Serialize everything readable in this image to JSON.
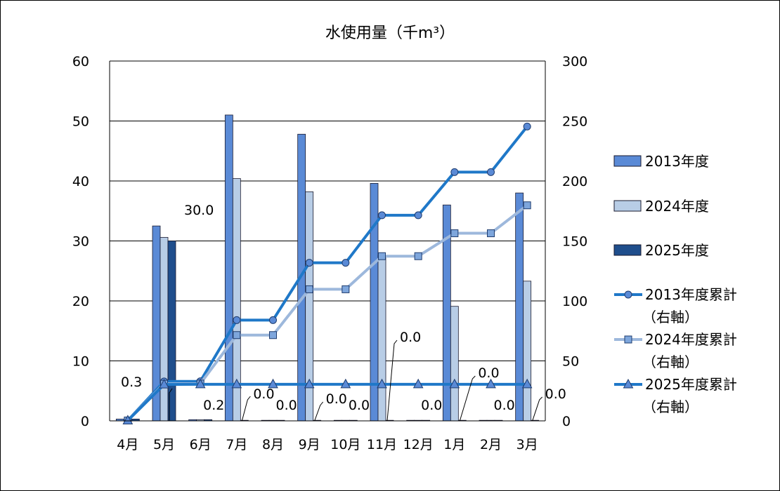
{
  "chart_data": {
    "type": "bar",
    "title": "水使用量（千m³）",
    "categories": [
      "4月",
      "5月",
      "6月",
      "7月",
      "8月",
      "9月",
      "10月",
      "11月",
      "12月",
      "1月",
      "2月",
      "3月"
    ],
    "y_left": {
      "min": 0,
      "max": 60,
      "step": 10,
      "ticks": [
        "0",
        "10",
        "20",
        "30",
        "40",
        "50",
        "60"
      ]
    },
    "y_right": {
      "min": 0,
      "max": 300,
      "step": 50,
      "ticks": [
        "0",
        "50",
        "100",
        "150",
        "200",
        "250",
        "300"
      ]
    },
    "grid": true,
    "legend_position": "right",
    "bar_series": [
      {
        "name": "2013年度",
        "color": "#5a8ad6",
        "values": [
          0.3,
          32.5,
          0.2,
          51.0,
          0.0,
          47.8,
          0.0,
          39.6,
          0.0,
          36.0,
          0.0,
          38.0
        ]
      },
      {
        "name": "2024年度",
        "color": "#b8cde6",
        "values": [
          0.3,
          30.6,
          0.2,
          40.4,
          0.0,
          38.2,
          0.0,
          27.6,
          0.0,
          19.1,
          0.0,
          23.3
        ]
      },
      {
        "name": "2025年度",
        "color": "#1f4e8c",
        "values": [
          0.3,
          30.0,
          0.2,
          0.0,
          0.0,
          0.0,
          0.0,
          0.0,
          0.0,
          0.0,
          0.0,
          0.0
        ]
      }
    ],
    "line_series": [
      {
        "name": "2013年度累計",
        "name_line2": "（右軸）",
        "color": "#1f78c8",
        "marker": "circle",
        "values": [
          0.3,
          32.8,
          33.0,
          84.0,
          84.0,
          131.8,
          131.8,
          171.4,
          171.4,
          207.4,
          207.4,
          245.4
        ]
      },
      {
        "name": "2024年度累計",
        "name_line2": "（右軸）",
        "color": "#9db8dc",
        "marker": "square",
        "values": [
          0.3,
          30.9,
          31.1,
          71.5,
          71.5,
          109.7,
          109.7,
          137.3,
          137.3,
          156.4,
          156.4,
          179.7
        ]
      },
      {
        "name": "2025年度累計",
        "name_line2": "（右軸）",
        "color": "#1f78c8",
        "marker": "triangle",
        "values": [
          0.3,
          30.3,
          30.5,
          30.5,
          30.5,
          30.5,
          30.5,
          30.5,
          30.5,
          30.5,
          30.5,
          30.5
        ]
      }
    ],
    "data_labels": [
      {
        "category_index": 0,
        "text": "0.3"
      },
      {
        "category_index": 1,
        "text": "30.0"
      },
      {
        "category_index": 2,
        "text": "0.2"
      },
      {
        "category_index": 3,
        "text": "0.0"
      },
      {
        "category_index": 4,
        "text": "0.0"
      },
      {
        "category_index": 5,
        "text": "0.0"
      },
      {
        "category_index": 6,
        "text": "0.0"
      },
      {
        "category_index": 7,
        "text": "0.0"
      },
      {
        "category_index": 8,
        "text": "0.0"
      },
      {
        "category_index": 9,
        "text": "0.0"
      },
      {
        "category_index": 10,
        "text": "0.0"
      },
      {
        "category_index": 11,
        "text": "0.0"
      }
    ]
  }
}
